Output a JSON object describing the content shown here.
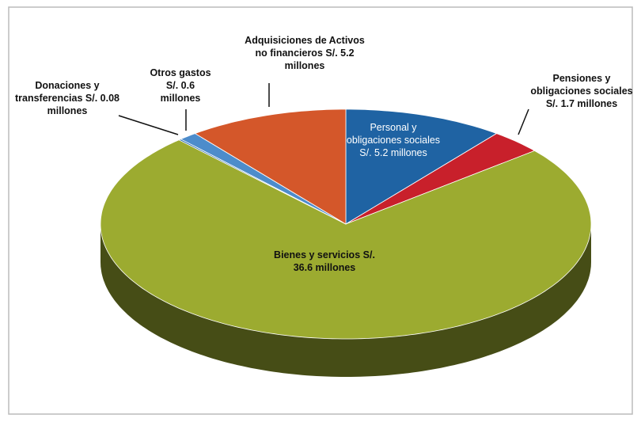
{
  "chart_data": {
    "type": "pie",
    "categories": [
      "Personal y obligaciones sociales",
      "Pensiones y obligaciones sociales",
      "Bienes y servicios",
      "Donaciones y transferencias",
      "Otros gastos",
      "Adquisiciones de Activos no financieros"
    ],
    "values": [
      5.2,
      1.7,
      36.6,
      0.08,
      0.6,
      5.2
    ],
    "value_labels": [
      "S/. 5.2 millones",
      "S/. 1.7 millones",
      "S/. 36.6 millones",
      "S/. 0.08 millones",
      "S/. 0.6 millones",
      "S/. 5.2 millones"
    ],
    "colors": [
      "#1f63a3",
      "#c8202b",
      "#9cab30",
      "#2f6fb3",
      "#4d8ccb",
      "#d4572a"
    ]
  }
}
